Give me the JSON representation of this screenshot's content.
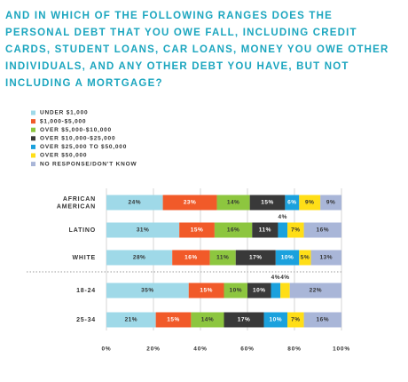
{
  "chart_data": {
    "type": "bar",
    "orientation": "horizontal",
    "stacked": true,
    "title": [
      "AND IN WHICH OF THE FOLLOWING RANGES DOES THE",
      "PERSONAL DEBT THAT YOU OWE FALL, INCLUDING CREDIT",
      "CARDS, STUDENT LOANS, CAR LOANS, MONEY YOU OWE OTHER",
      "INDIVIDUALS, AND ANY OTHER DEBT YOU HAVE, BUT NOT",
      "INCLUDING A MORTGAGE?"
    ],
    "categories": [
      "AFRICAN AMERICAN",
      "LATINO",
      "WHITE",
      "18-24",
      "25-34"
    ],
    "series": [
      {
        "name": "UNDER $1,000",
        "color": "#9fd9e8",
        "values": [
          24,
          31,
          28,
          35,
          21
        ],
        "value_labels": [
          "24%",
          "31%",
          "28%",
          "35%",
          "21%"
        ]
      },
      {
        "name": "$1,000-$5,000",
        "color": "#f15a29",
        "values": [
          23,
          15,
          16,
          15,
          15
        ],
        "value_labels": [
          "23%",
          "15%",
          "16%",
          "15%",
          "15%"
        ]
      },
      {
        "name": "OVER $5,000-$10,000",
        "color": "#8dc63f",
        "values": [
          14,
          16,
          11,
          10,
          14
        ],
        "value_labels": [
          "14%",
          "16%",
          "11%",
          "10%",
          "14%"
        ]
      },
      {
        "name": "OVER $10,000-$25,000",
        "color": "#393939",
        "values": [
          15,
          11,
          17,
          10,
          17
        ],
        "value_labels": [
          "15%",
          "11%",
          "17%",
          "10%",
          "17%"
        ]
      },
      {
        "name": "OVER $25,000 TO $50,000",
        "color": "#1ba1dd",
        "values": [
          6,
          4,
          10,
          4,
          10
        ],
        "value_labels": [
          "6%",
          "4%",
          "10%",
          "4%",
          "10%"
        ]
      },
      {
        "name": "OVER $50,000",
        "color": "#ffde17",
        "values": [
          9,
          7,
          5,
          4,
          7
        ],
        "value_labels": [
          "9%",
          "7%",
          "5%",
          "4%",
          "7%"
        ]
      },
      {
        "name": "NO RESPONSE/DON'T KNOW",
        "color": "#a9b6d8",
        "values": [
          9,
          16,
          13,
          22,
          16
        ],
        "value_labels": [
          "9%",
          "16%",
          "13%",
          "22%",
          "16%"
        ]
      }
    ],
    "xlim": [
      0,
      100
    ],
    "xticks": [
      {
        "value": 0,
        "label": "0%"
      },
      {
        "value": 20,
        "label": "20%"
      },
      {
        "value": 40,
        "label": "40%"
      },
      {
        "value": 60,
        "label": "60%"
      },
      {
        "value": 80,
        "label": "80%"
      },
      {
        "value": 100,
        "label": "100%"
      }
    ],
    "grid": true
  }
}
